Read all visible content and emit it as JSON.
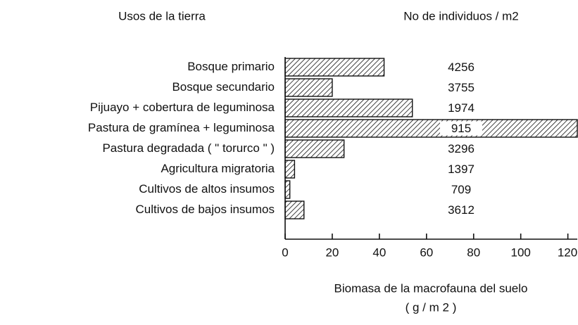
{
  "chart_data": {
    "type": "bar",
    "orientation": "horizontal",
    "category_header": "Usos de la tierra",
    "count_header": "No de individuos / m2",
    "xlabel": [
      "Biomasa de la macrofauna del suelo",
      "( g / m 2 )"
    ],
    "categories": [
      "Bosque primario",
      "Bosque secundario",
      "Pijuayo + cobertura de leguminosa",
      "Pastura de gramínea + leguminosa",
      "Pastura degradada ( \" torurco \" )",
      "Agricultura migratoria",
      "Cultivos de altos insumos",
      "Cultivos de bajos insumos"
    ],
    "values": [
      42,
      20,
      54,
      124,
      25,
      4,
      2,
      8
    ],
    "counts": [
      4256,
      3755,
      1974,
      915,
      3296,
      1397,
      709,
      3612
    ],
    "xlim": [
      0,
      124
    ],
    "xticks": [
      0,
      20,
      40,
      60,
      80,
      100,
      120
    ],
    "color": "#111111",
    "hatch": true
  }
}
